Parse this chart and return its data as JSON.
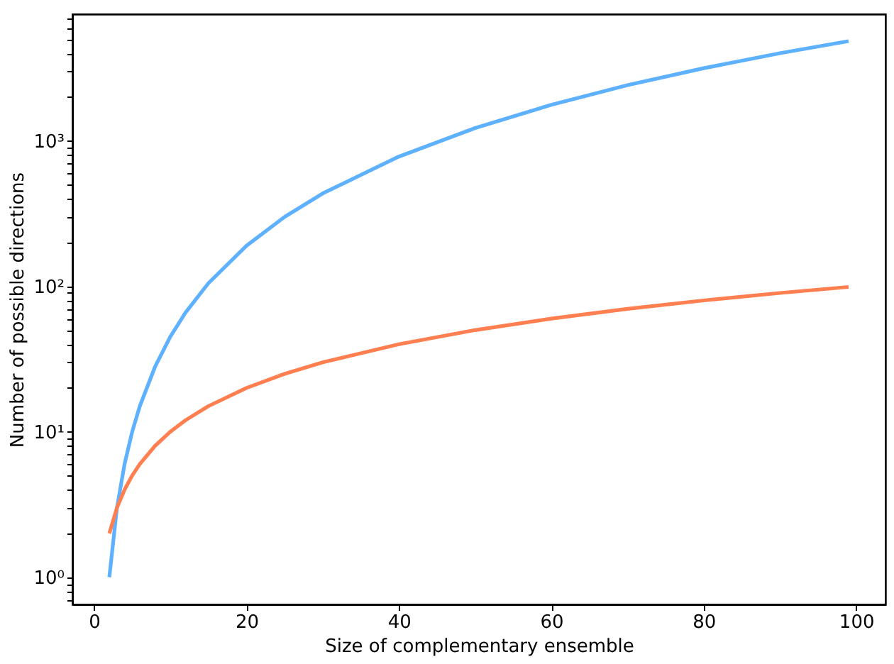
{
  "chart_data": {
    "type": "line",
    "xlabel": "Size of complementary ensemble",
    "ylabel": "Number of possible directions",
    "x": [
      2,
      3,
      4,
      5,
      6,
      8,
      10,
      12,
      15,
      20,
      25,
      30,
      40,
      50,
      60,
      70,
      80,
      90,
      99
    ],
    "series": [
      {
        "color": "#5eb1ff",
        "values": [
          1,
          3,
          6,
          10,
          15,
          28,
          45,
          66,
          105,
          190,
          300,
          435,
          780,
          1225,
          1770,
          2415,
          3160,
          4005,
          4851
        ]
      },
      {
        "color": "#ff7f50",
        "values": [
          2,
          3,
          4,
          5,
          6,
          8,
          10,
          12,
          15,
          20,
          25,
          30,
          40,
          50,
          60,
          70,
          80,
          90,
          99
        ]
      }
    ],
    "log": "y",
    "xlim": [
      -2.85,
      103.85
    ],
    "ylim": [
      0.65,
      7430
    ],
    "xticks": [
      0,
      20,
      40,
      60,
      80,
      100
    ],
    "yticks": [
      {
        "value": 0.7,
        "label": null
      },
      {
        "value": 0.8,
        "label": null
      },
      {
        "value": 0.9,
        "label": null
      },
      {
        "value": 1,
        "label": "10⁰"
      },
      {
        "value": 2,
        "label": null
      },
      {
        "value": 3,
        "label": null
      },
      {
        "value": 4,
        "label": null
      },
      {
        "value": 5,
        "label": null
      },
      {
        "value": 6,
        "label": null
      },
      {
        "value": 7,
        "label": null
      },
      {
        "value": 8,
        "label": null
      },
      {
        "value": 9,
        "label": null
      },
      {
        "value": 10,
        "label": "10¹"
      },
      {
        "value": 20,
        "label": null
      },
      {
        "value": 30,
        "label": null
      },
      {
        "value": 40,
        "label": null
      },
      {
        "value": 50,
        "label": null
      },
      {
        "value": 60,
        "label": null
      },
      {
        "value": 70,
        "label": null
      },
      {
        "value": 80,
        "label": null
      },
      {
        "value": 90,
        "label": null
      },
      {
        "value": 100,
        "label": "10²"
      },
      {
        "value": 200,
        "label": null
      },
      {
        "value": 300,
        "label": null
      },
      {
        "value": 400,
        "label": null
      },
      {
        "value": 500,
        "label": null
      },
      {
        "value": 600,
        "label": null
      },
      {
        "value": 700,
        "label": null
      },
      {
        "value": 800,
        "label": null
      },
      {
        "value": 900,
        "label": null
      },
      {
        "value": 1000,
        "label": "10³"
      },
      {
        "value": 2000,
        "label": null
      },
      {
        "value": 3000,
        "label": null
      },
      {
        "value": 4000,
        "label": null
      },
      {
        "value": 5000,
        "label": null
      },
      {
        "value": 6000,
        "label": null
      },
      {
        "value": 7000,
        "label": null
      }
    ],
    "grid": false,
    "legend": false,
    "marker": "none",
    "line_style": "solid"
  }
}
